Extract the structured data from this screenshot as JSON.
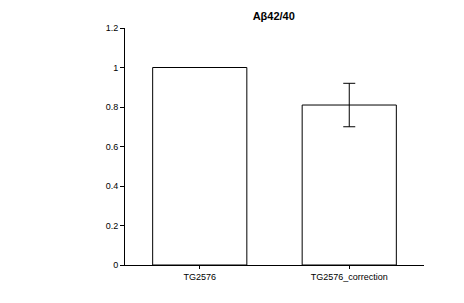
{
  "chart_data": {
    "type": "bar",
    "title": "Aβ42/40",
    "categories": [
      "TG2576",
      "TG2576_correction"
    ],
    "values": [
      1,
      0.81
    ],
    "errors": [
      null,
      0.11
    ],
    "color": "#ffffff",
    "ylim": [
      0,
      1.2
    ],
    "yticks": [
      0,
      0.2,
      0.4,
      0.6,
      0.8,
      1,
      1.2
    ],
    "grid": false
  }
}
